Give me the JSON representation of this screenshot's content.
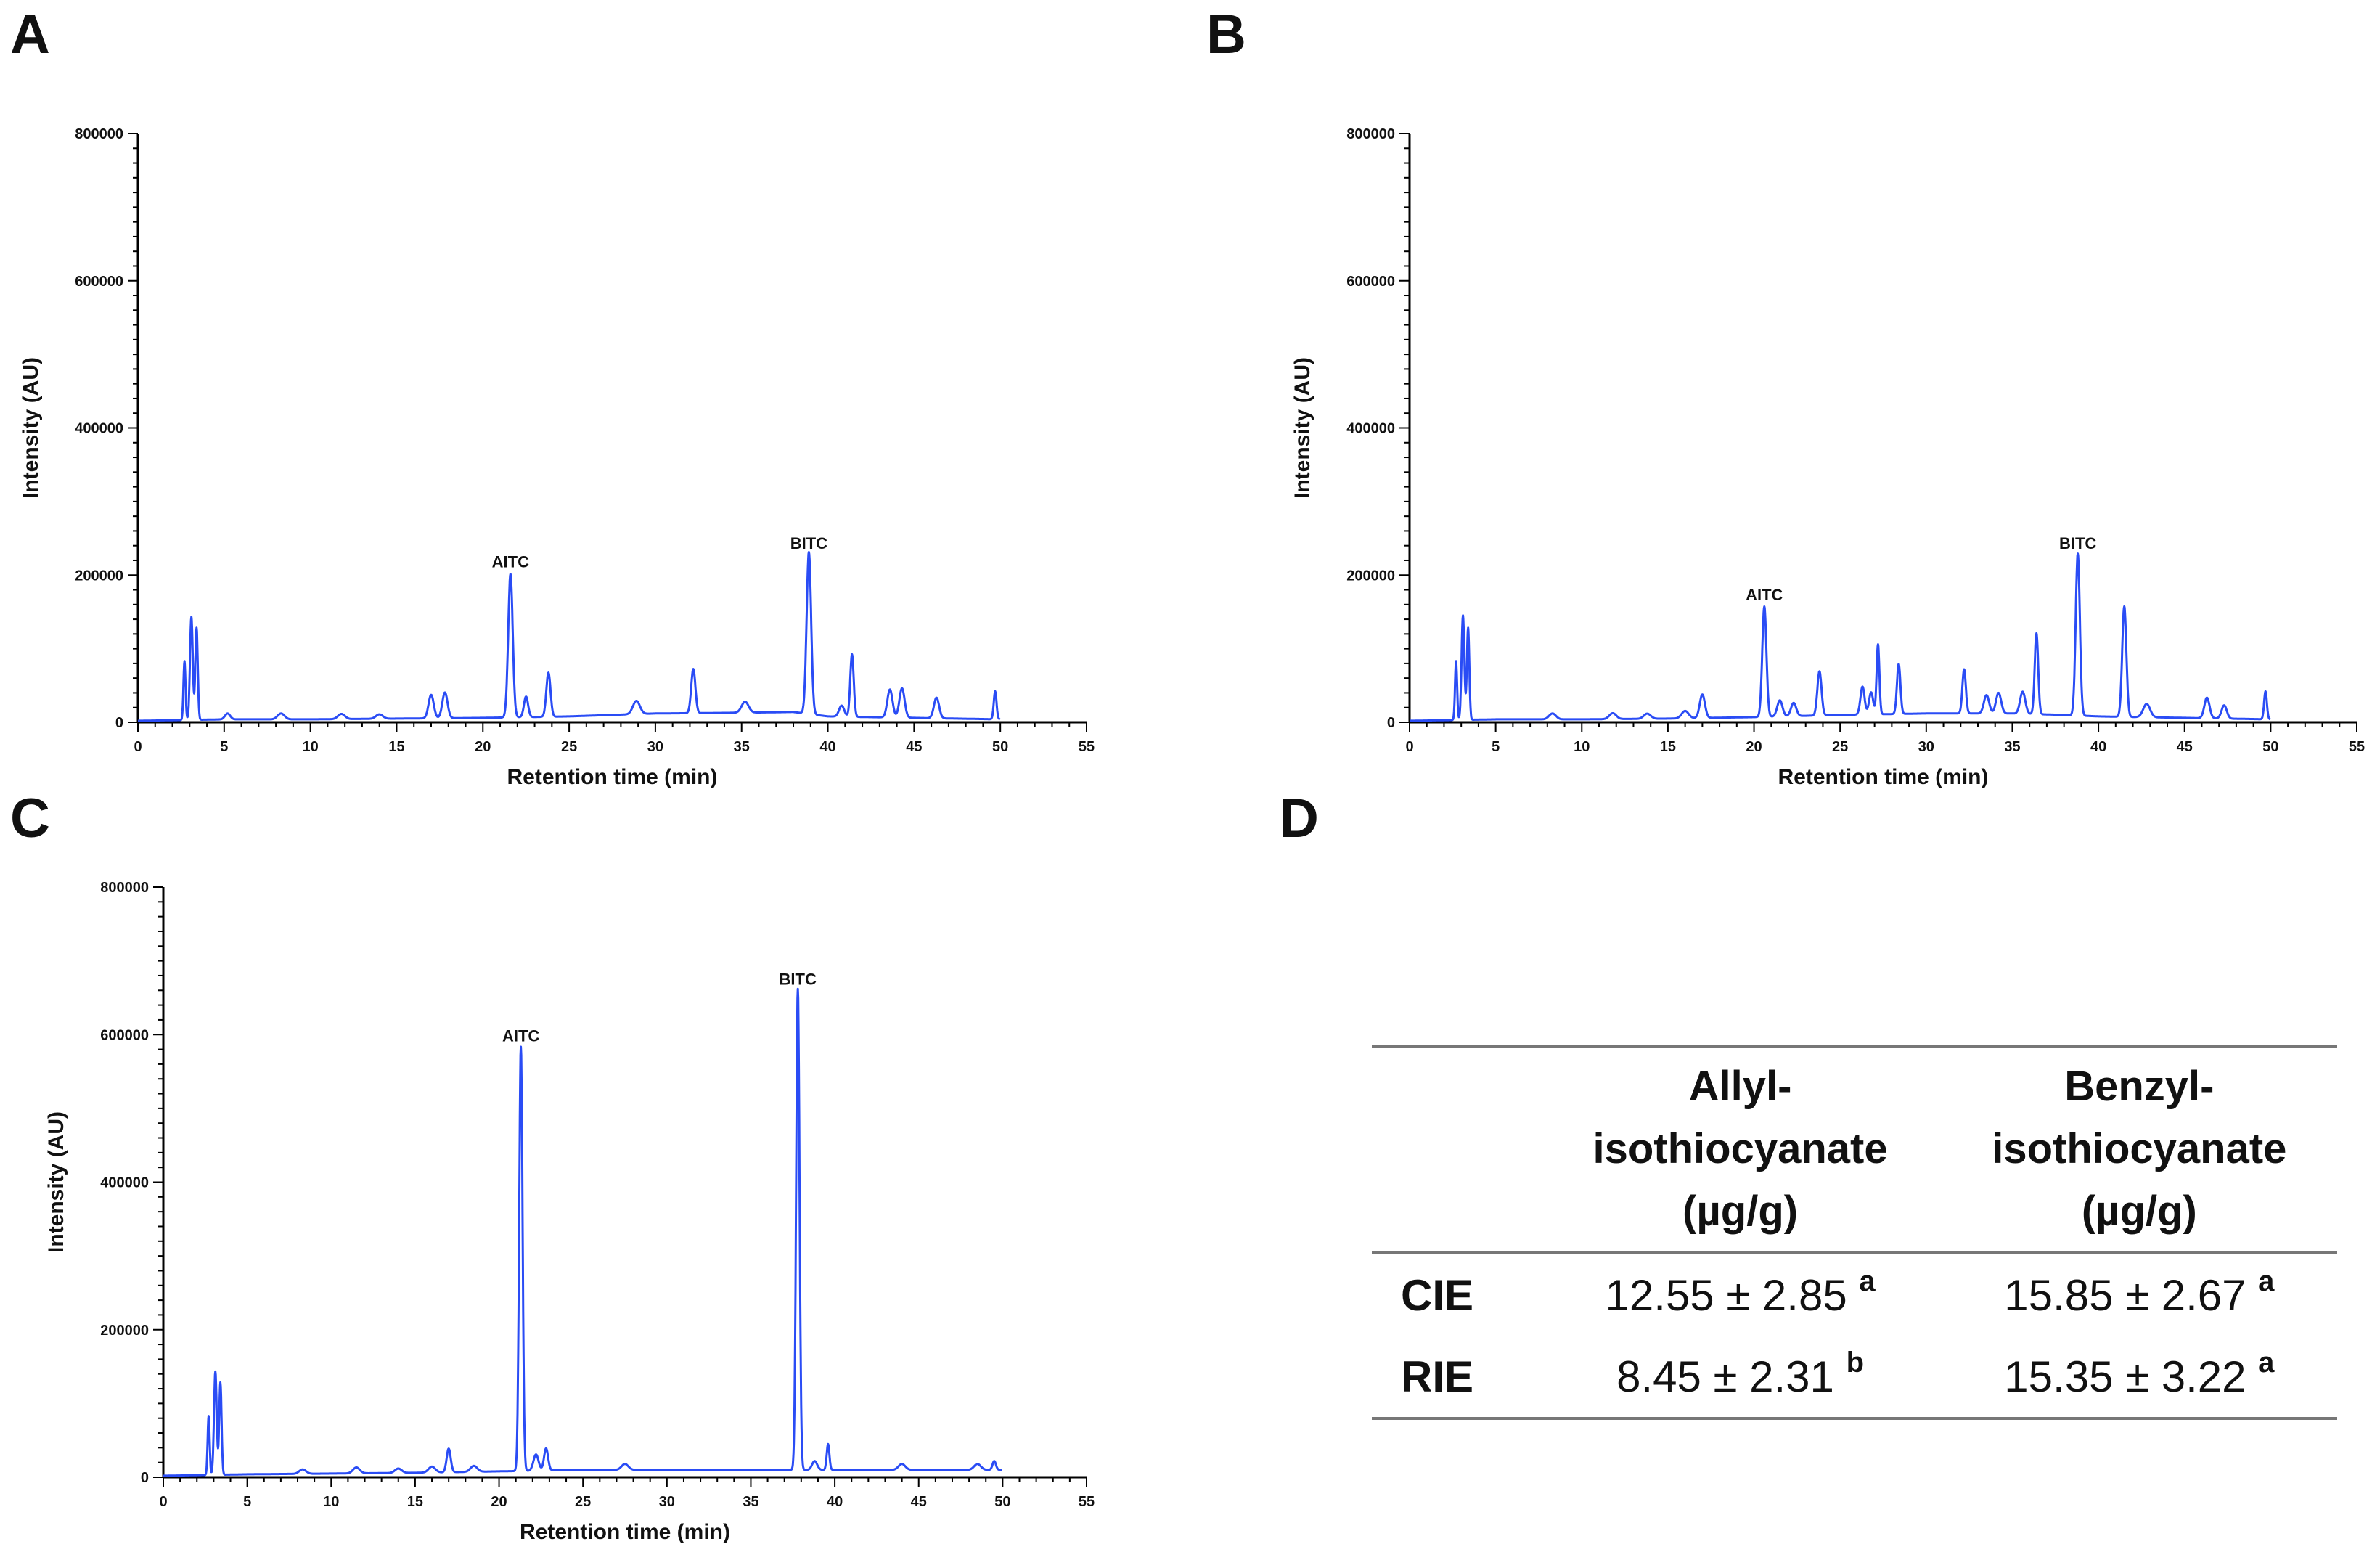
{
  "panels": {
    "A": "A",
    "B": "B",
    "C": "C",
    "D": "D"
  },
  "colors": {
    "trace": "#2a4cf5",
    "axis": "#000000",
    "rule": "#777777"
  },
  "chart_data": [
    {
      "id": "A",
      "type": "line",
      "title": "",
      "xlabel": "Retention time (min)",
      "ylabel": "Intensity (AU)",
      "xlim": [
        0,
        55
      ],
      "ylim": [
        0,
        800000
      ],
      "xticks": [
        "0",
        "5",
        "10",
        "15",
        "20",
        "25",
        "30",
        "35",
        "40",
        "45",
        "50",
        "55"
      ],
      "yticks": [
        "0",
        "200000",
        "400000",
        "600000",
        "800000"
      ],
      "baseline": [
        [
          0,
          2000
        ],
        [
          2.5,
          3000
        ],
        [
          5,
          4000
        ],
        [
          10,
          4000
        ],
        [
          15,
          5000
        ],
        [
          20,
          6000
        ],
        [
          25,
          8000
        ],
        [
          30,
          12000
        ],
        [
          35,
          13000
        ],
        [
          38,
          14000
        ],
        [
          40,
          8000
        ],
        [
          45,
          6000
        ],
        [
          50,
          4000
        ]
      ],
      "peaks": [
        [
          2.7,
          80000,
          0.06
        ],
        [
          3.1,
          140000,
          0.08
        ],
        [
          3.4,
          125000,
          0.07
        ],
        [
          5.2,
          8000,
          0.15
        ],
        [
          8.3,
          8000,
          0.2
        ],
        [
          11.8,
          7000,
          0.2
        ],
        [
          14,
          6000,
          0.2
        ],
        [
          17,
          32000,
          0.15
        ],
        [
          17.8,
          35000,
          0.15
        ],
        [
          21.6,
          195000,
          0.13
        ],
        [
          22.5,
          28000,
          0.12
        ],
        [
          23.8,
          60000,
          0.12
        ],
        [
          28.9,
          18000,
          0.2
        ],
        [
          32.2,
          60000,
          0.12
        ],
        [
          35.2,
          15000,
          0.2
        ],
        [
          38.9,
          220000,
          0.13
        ],
        [
          40.8,
          15000,
          0.15
        ],
        [
          41.4,
          85000,
          0.1
        ],
        [
          43.6,
          38000,
          0.15
        ],
        [
          44.3,
          40000,
          0.15
        ],
        [
          46.3,
          28000,
          0.15
        ],
        [
          49.7,
          38000,
          0.08
        ]
      ],
      "annotations": [
        {
          "text": "AITC",
          "x": 21.6,
          "y": 195000
        },
        {
          "text": "BITC",
          "x": 38.9,
          "y": 220000
        }
      ],
      "xmax_data": 50
    },
    {
      "id": "B",
      "type": "line",
      "title": "",
      "xlabel": "Retention time (min)",
      "ylabel": "Intensity (AU)",
      "xlim": [
        0,
        55
      ],
      "ylim": [
        0,
        800000
      ],
      "xticks": [
        "0",
        "5",
        "10",
        "15",
        "20",
        "25",
        "30",
        "35",
        "40",
        "45",
        "50",
        "55"
      ],
      "yticks": [
        "0",
        "200000",
        "400000",
        "600000",
        "800000"
      ],
      "baseline": [
        [
          0,
          2000
        ],
        [
          2.5,
          3000
        ],
        [
          5,
          4000
        ],
        [
          10,
          4000
        ],
        [
          15,
          5000
        ],
        [
          20,
          7000
        ],
        [
          25,
          10000
        ],
        [
          30,
          12000
        ],
        [
          35,
          12000
        ],
        [
          38,
          10000
        ],
        [
          40,
          8000
        ],
        [
          45,
          6000
        ],
        [
          50,
          4000
        ]
      ],
      "peaks": [
        [
          2.7,
          80000,
          0.06
        ],
        [
          3.1,
          142000,
          0.08
        ],
        [
          3.4,
          125000,
          0.07
        ],
        [
          8.3,
          8000,
          0.2
        ],
        [
          11.8,
          8000,
          0.2
        ],
        [
          13.8,
          7000,
          0.2
        ],
        [
          16,
          10000,
          0.2
        ],
        [
          17,
          32000,
          0.15
        ],
        [
          20.6,
          150000,
          0.12
        ],
        [
          21.5,
          22000,
          0.15
        ],
        [
          22.3,
          18000,
          0.15
        ],
        [
          23.8,
          60000,
          0.12
        ],
        [
          26.3,
          38000,
          0.12
        ],
        [
          26.8,
          30000,
          0.12
        ],
        [
          27.2,
          95000,
          0.08
        ],
        [
          28.4,
          68000,
          0.1
        ],
        [
          32.2,
          60000,
          0.1
        ],
        [
          33.5,
          25000,
          0.15
        ],
        [
          34.2,
          28000,
          0.15
        ],
        [
          35.6,
          30000,
          0.15
        ],
        [
          36.4,
          110000,
          0.1
        ],
        [
          38.8,
          220000,
          0.12
        ],
        [
          41.5,
          150000,
          0.12
        ],
        [
          42.8,
          18000,
          0.2
        ],
        [
          46.3,
          28000,
          0.15
        ],
        [
          47.3,
          18000,
          0.15
        ],
        [
          49.7,
          38000,
          0.08
        ]
      ],
      "annotations": [
        {
          "text": "AITC",
          "x": 20.6,
          "y": 150000
        },
        {
          "text": "BITC",
          "x": 38.8,
          "y": 220000
        }
      ],
      "xmax_data": 50
    },
    {
      "id": "C",
      "type": "line",
      "title": "",
      "xlabel": "Retention time (min)",
      "ylabel": "Intensity (AU)",
      "xlim": [
        0,
        55
      ],
      "ylim": [
        0,
        800000
      ],
      "xticks": [
        "0",
        "5",
        "10",
        "15",
        "20",
        "25",
        "30",
        "35",
        "40",
        "45",
        "50",
        "55"
      ],
      "yticks": [
        "0",
        "200000",
        "400000",
        "600000",
        "800000"
      ],
      "baseline": [
        [
          0,
          2000
        ],
        [
          2.5,
          3000
        ],
        [
          5,
          4000
        ],
        [
          10,
          5000
        ],
        [
          15,
          6000
        ],
        [
          20,
          8000
        ],
        [
          25,
          10000
        ],
        [
          30,
          10000
        ],
        [
          35,
          10000
        ],
        [
          40,
          10000
        ],
        [
          45,
          10000
        ],
        [
          50,
          10000
        ]
      ],
      "peaks": [
        [
          2.7,
          80000,
          0.06
        ],
        [
          3.1,
          140000,
          0.08
        ],
        [
          3.4,
          125000,
          0.07
        ],
        [
          8.3,
          6000,
          0.2
        ],
        [
          11.5,
          8000,
          0.2
        ],
        [
          14,
          6000,
          0.2
        ],
        [
          16,
          8000,
          0.2
        ],
        [
          17,
          32000,
          0.12
        ],
        [
          18.5,
          8000,
          0.2
        ],
        [
          21.3,
          575000,
          0.1
        ],
        [
          22.2,
          22000,
          0.15
        ],
        [
          22.8,
          30000,
          0.12
        ],
        [
          27.5,
          8000,
          0.2
        ],
        [
          37.8,
          652000,
          0.1
        ],
        [
          38.8,
          12000,
          0.15
        ],
        [
          39.6,
          35000,
          0.08
        ],
        [
          44,
          8000,
          0.2
        ],
        [
          48.5,
          8000,
          0.2
        ],
        [
          49.5,
          12000,
          0.1
        ]
      ],
      "annotations": [
        {
          "text": "AITC",
          "x": 21.3,
          "y": 575000
        },
        {
          "text": "BITC",
          "x": 37.8,
          "y": 652000
        }
      ],
      "xmax_data": 50
    },
    {
      "id": "D",
      "type": "table",
      "columns": [
        "",
        "Allyl-isothiocyanate (µg/g)",
        "Benzyl-isothiocyanate (µg/g)"
      ],
      "rows": [
        [
          "CIE",
          "12.55 ± 2.85 a",
          "15.85 ± 2.67 a"
        ],
        [
          "RIE",
          "8.45 ± 2.31 b",
          "15.35 ± 3.22 a"
        ]
      ]
    }
  ],
  "table": {
    "header": {
      "col1": [
        "Allyl-",
        "isothiocyanate",
        "(µg/g)"
      ],
      "col2": [
        "Benzyl-",
        "isothiocyanate",
        "(µg/g)"
      ]
    },
    "rows": [
      {
        "label": "CIE",
        "v1": "12.55 ± 2.85",
        "s1": "a",
        "v2": "15.85 ± 2.67",
        "s2": "a"
      },
      {
        "label": "RIE",
        "v1": "8.45 ± 2.31",
        "s1": "b",
        "v2": "15.35 ± 3.22",
        "s2": "a"
      }
    ]
  }
}
